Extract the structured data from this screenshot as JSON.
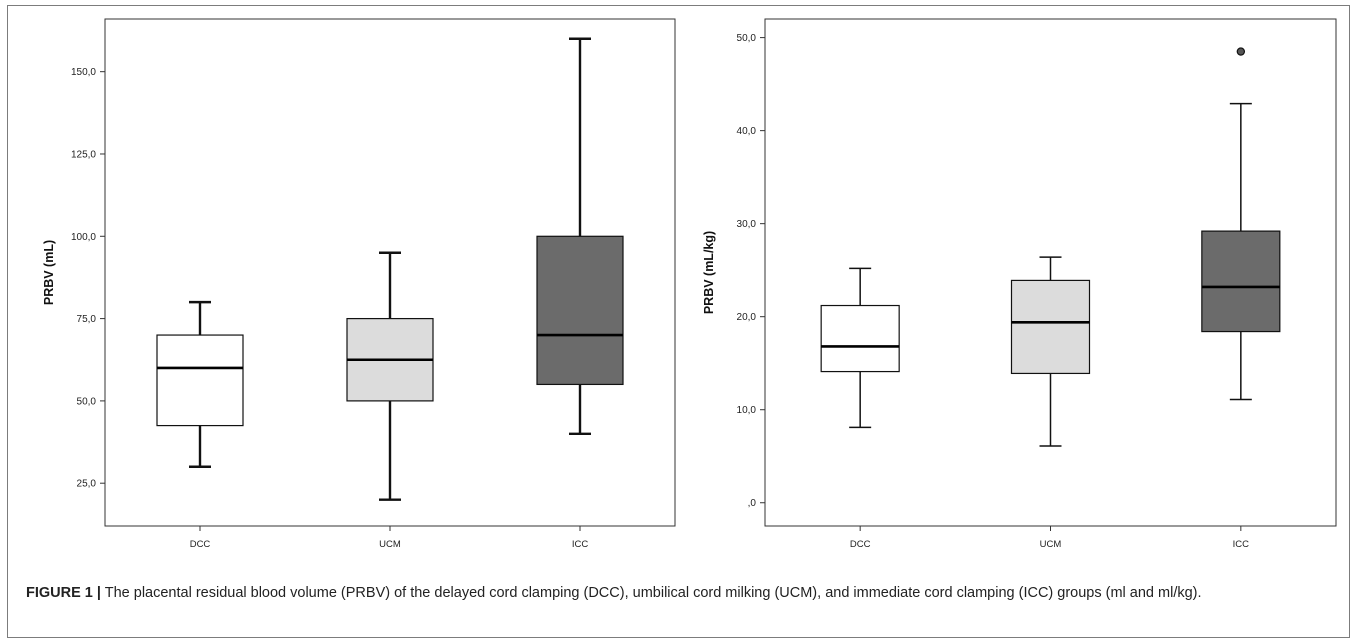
{
  "caption": {
    "label": "FIGURE 1 |",
    "text": "The placental residual blood volume (PRBV) of the delayed cord clamping (DCC), umbilical cord milking (UCM), and immediate cord clamping (ICC) groups (ml and ml/kg)."
  },
  "chart_data": [
    {
      "type": "box",
      "ylabel": "PRBV (mL)",
      "categories": [
        "DCC",
        "UCM",
        "ICC"
      ],
      "ylim": [
        12,
        166
      ],
      "yticks": [
        25,
        50,
        75,
        100,
        125,
        150
      ],
      "ytick_labels": [
        "25,0",
        "50,0",
        "75,0",
        "100,0",
        "125,0",
        "150,0"
      ],
      "grid": false,
      "boxes": [
        {
          "category": "DCC",
          "min": 30,
          "q1": 42.5,
          "median": 60,
          "q3": 70,
          "max": 80,
          "outliers": [],
          "fill": "#ffffff"
        },
        {
          "category": "UCM",
          "min": 20,
          "q1": 50,
          "median": 62.5,
          "q3": 75,
          "max": 95,
          "outliers": [],
          "fill": "#dcdcdc"
        },
        {
          "category": "ICC",
          "min": 40,
          "q1": 55,
          "median": 70,
          "q3": 100,
          "max": 160,
          "outliers": [],
          "fill": "#6b6b6b"
        }
      ]
    },
    {
      "type": "box",
      "ylabel": "PRBV (mL/kg)",
      "categories": [
        "DCC",
        "UCM",
        "ICC"
      ],
      "ylim": [
        -2.5,
        52
      ],
      "yticks": [
        0,
        10,
        20,
        30,
        40,
        50
      ],
      "ytick_labels": [
        ",0",
        "10,0",
        "20,0",
        "30,0",
        "40,0",
        "50,0"
      ],
      "grid": false,
      "boxes": [
        {
          "category": "DCC",
          "min": 8.1,
          "q1": 14.1,
          "median": 16.8,
          "q3": 21.2,
          "max": 25.2,
          "outliers": [],
          "fill": "#ffffff"
        },
        {
          "category": "UCM",
          "min": 6.1,
          "q1": 13.9,
          "median": 19.4,
          "q3": 23.9,
          "max": 26.4,
          "outliers": [],
          "fill": "#dcdcdc"
        },
        {
          "category": "ICC",
          "min": 11.1,
          "q1": 18.4,
          "median": 23.2,
          "q3": 29.2,
          "max": 42.9,
          "outliers": [
            48.5
          ],
          "fill": "#6b6b6b"
        }
      ]
    }
  ]
}
